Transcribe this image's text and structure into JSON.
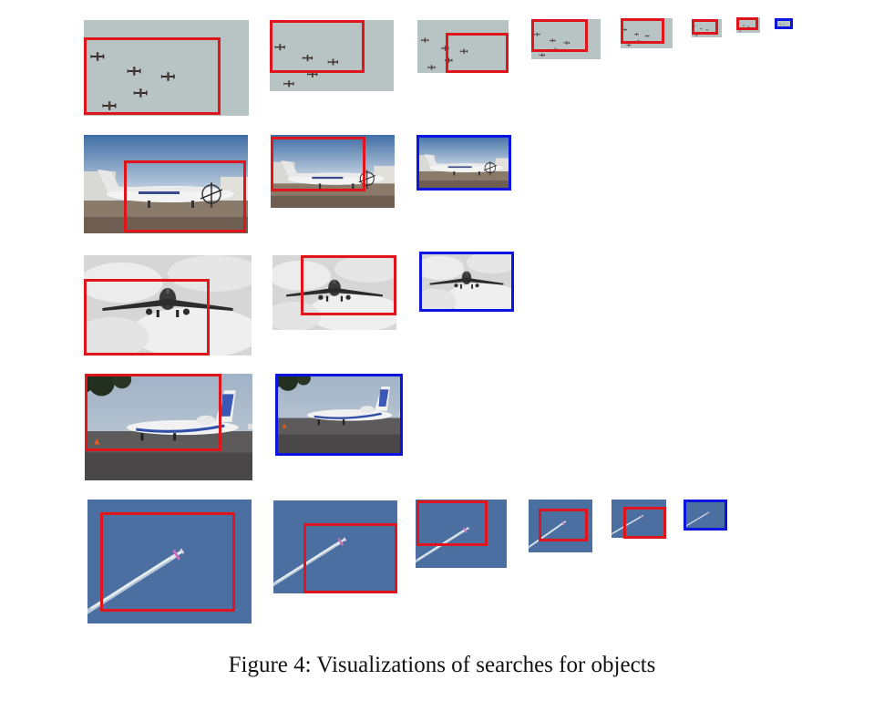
{
  "figure": {
    "caption": "Figure 4: Visualizations of searches for objects",
    "box_colors": {
      "search_step": "#e0141b",
      "final_result": "#0b14e0"
    }
  },
  "rows": [
    {
      "name": "formation-planes",
      "steps": 8
    },
    {
      "name": "turboprop-on-tarmac",
      "steps": 3
    },
    {
      "name": "jet-landing-clouds",
      "steps": 3
    },
    {
      "name": "regional-jet-parked",
      "steps": 2
    },
    {
      "name": "jet-contrail-blue-sky",
      "steps": 6
    }
  ]
}
